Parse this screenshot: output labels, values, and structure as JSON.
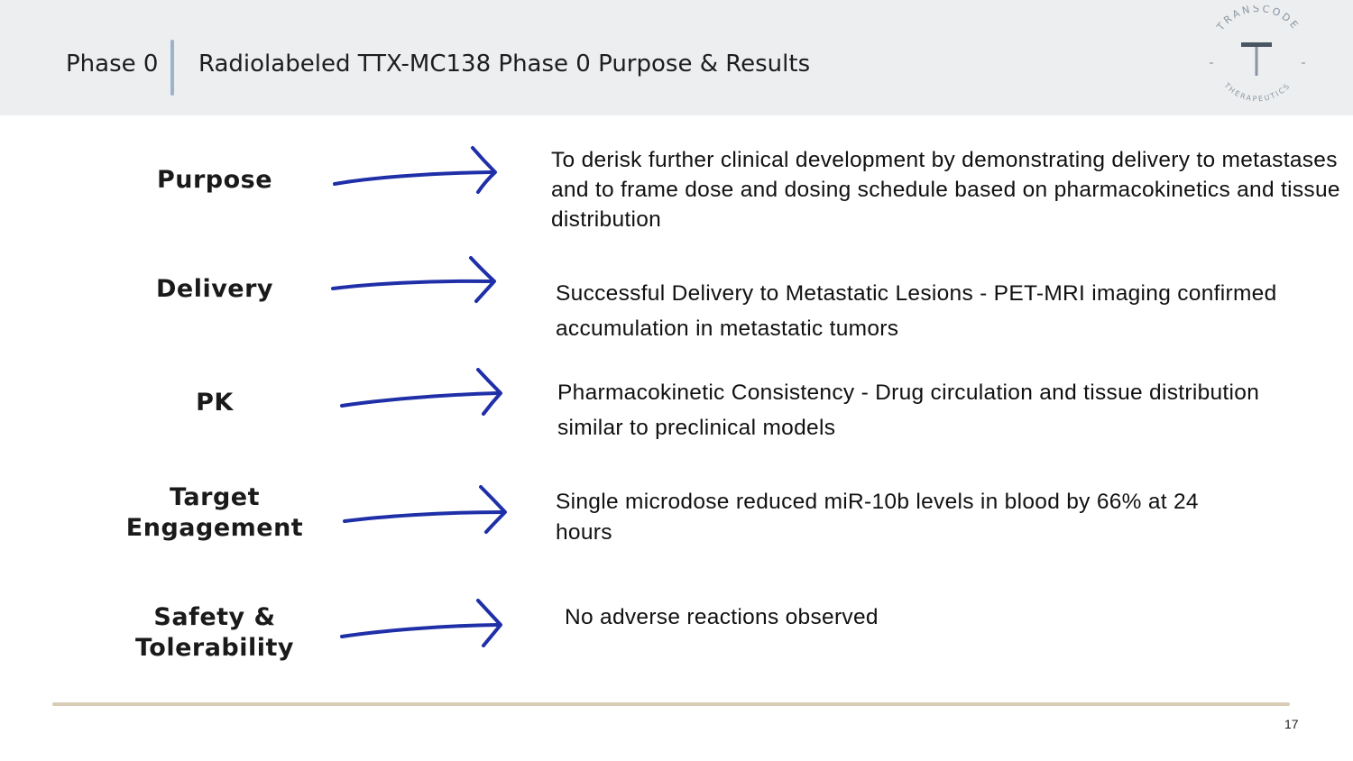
{
  "header": {
    "phase_label": "Phase 0",
    "title": "Radiolabeled TTX-MC138 Phase 0 Purpose & Results"
  },
  "logo": {
    "arc_top_text": "TRANSCODE",
    "arc_bottom_text": "THERAPEUTICS",
    "monogram": "T",
    "color": "#8a96a3"
  },
  "colors": {
    "header_background": "#eceeef",
    "arrow": "#1f2fa8",
    "footer_rule": "#d9ccb4",
    "divider": "#9db3c9"
  },
  "rows": [
    {
      "label": "Purpose",
      "text": "To derisk further clinical development by demonstrating delivery to metastases and to frame dose and dosing schedule based on pharmacokinetics and tissue distribution"
    },
    {
      "label": "Delivery",
      "text": "Successful Delivery to Metastatic Lesions - PET-MRI imaging confirmed accumulation in metastatic tumors"
    },
    {
      "label": "PK",
      "text": "Pharmacokinetic Consistency - Drug circulation and tissue distribution similar to preclinical models"
    },
    {
      "label_lines": [
        "Target",
        "Engagement"
      ],
      "text": "Single microdose reduced miR-10b levels in blood by 66% at 24 hours"
    },
    {
      "label_lines": [
        "Safety &",
        "Tolerability"
      ],
      "text": "No adverse reactions observed"
    }
  ],
  "footer": {
    "page_number": "17"
  }
}
